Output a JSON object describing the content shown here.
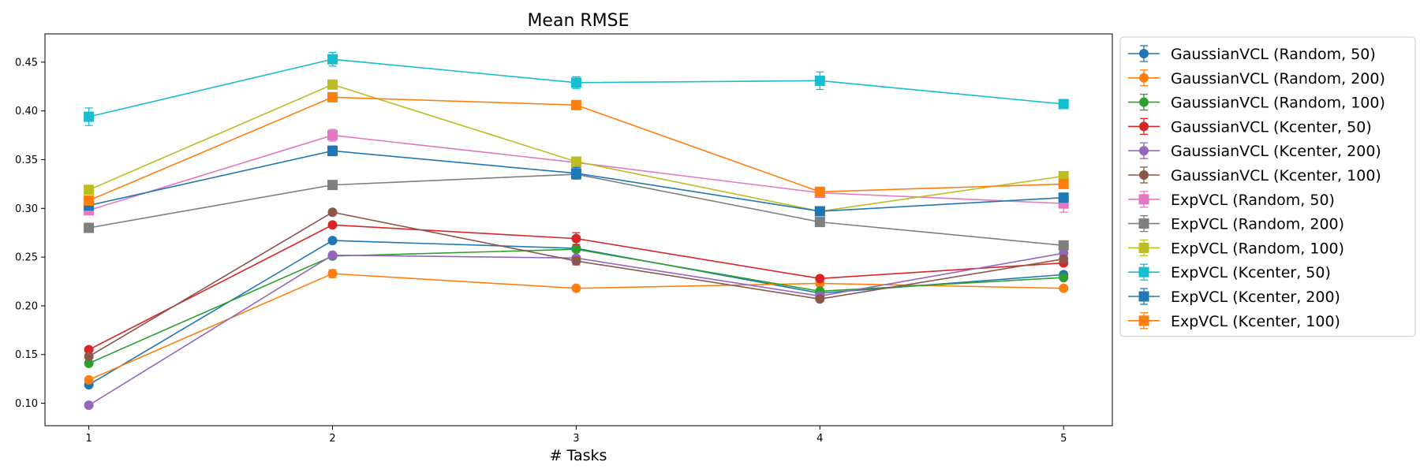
{
  "chart_data": {
    "type": "line",
    "title": "Mean RMSE",
    "xlabel": "# Tasks",
    "ylabel": "",
    "x": [
      1,
      2,
      3,
      4,
      5
    ],
    "xlim": [
      0.82,
      5.2
    ],
    "ylim": [
      0.077,
      0.479
    ],
    "yticks": [
      "0.10",
      "0.15",
      "0.20",
      "0.25",
      "0.30",
      "0.35",
      "0.40",
      "0.45"
    ],
    "xticks": [
      "1",
      "2",
      "3",
      "4",
      "5"
    ],
    "grid": false,
    "legend_position": "outside-right",
    "series": [
      {
        "name": "GaussianVCL (Random, 50)",
        "color": "#1f77b4",
        "marker": "circle",
        "values": [
          0.119,
          0.267,
          0.259,
          0.213,
          0.232
        ],
        "err": [
          0.002,
          0.002,
          0.002,
          0.002,
          0.002
        ]
      },
      {
        "name": "GaussianVCL (Random, 200)",
        "color": "#ff7f0e",
        "marker": "circle",
        "values": [
          0.124,
          0.233,
          0.218,
          0.223,
          0.218
        ],
        "err": [
          0.002,
          0.004,
          0.002,
          0.002,
          0.002
        ]
      },
      {
        "name": "GaussianVCL (Random, 100)",
        "color": "#2ca02c",
        "marker": "circle",
        "values": [
          0.141,
          0.251,
          0.258,
          0.215,
          0.229
        ],
        "err": [
          0.002,
          0.002,
          0.002,
          0.002,
          0.002
        ]
      },
      {
        "name": "GaussianVCL (Kcenter, 50)",
        "color": "#d62728",
        "marker": "circle",
        "values": [
          0.155,
          0.283,
          0.269,
          0.228,
          0.244
        ],
        "err": [
          0.002,
          0.002,
          0.006,
          0.002,
          0.002
        ]
      },
      {
        "name": "GaussianVCL (Kcenter, 200)",
        "color": "#9467bd",
        "marker": "circle",
        "values": [
          0.098,
          0.252,
          0.249,
          0.21,
          0.254
        ],
        "err": [
          0.002,
          0.002,
          0.002,
          0.002,
          0.002
        ]
      },
      {
        "name": "GaussianVCL (Kcenter, 100)",
        "color": "#8c564b",
        "marker": "circle",
        "values": [
          0.148,
          0.296,
          0.246,
          0.207,
          0.248
        ],
        "err": [
          0.002,
          0.002,
          0.004,
          0.002,
          0.002
        ]
      },
      {
        "name": "ExpVCL (Random, 50)",
        "color": "#e377c2",
        "marker": "square",
        "values": [
          0.298,
          0.375,
          0.347,
          0.316,
          0.305
        ],
        "err": [
          0.004,
          0.006,
          0.004,
          0.004,
          0.009
        ]
      },
      {
        "name": "ExpVCL (Random, 200)",
        "color": "#7f7f7f",
        "marker": "square",
        "values": [
          0.28,
          0.324,
          0.335,
          0.286,
          0.262
        ],
        "err": [
          0.002,
          0.002,
          0.004,
          0.002,
          0.002
        ]
      },
      {
        "name": "ExpVCL (Random, 100)",
        "color": "#bcbd22",
        "marker": "square",
        "values": [
          0.319,
          0.427,
          0.348,
          0.297,
          0.333
        ],
        "err": [
          0.004,
          0.002,
          0.002,
          0.002,
          0.002
        ]
      },
      {
        "name": "ExpVCL (Kcenter, 50)",
        "color": "#17becf",
        "marker": "square",
        "values": [
          0.394,
          0.453,
          0.429,
          0.431,
          0.407
        ],
        "err": [
          0.009,
          0.007,
          0.006,
          0.009,
          0.002
        ]
      },
      {
        "name": "ExpVCL (Kcenter, 200)",
        "color": "#1f77b4",
        "marker": "square",
        "values": [
          0.303,
          0.359,
          0.336,
          0.297,
          0.311
        ],
        "err": [
          0.004,
          0.005,
          0.006,
          0.002,
          0.002
        ]
      },
      {
        "name": "ExpVCL (Kcenter, 100)",
        "color": "#ff7f0e",
        "marker": "square",
        "values": [
          0.308,
          0.414,
          0.406,
          0.317,
          0.325
        ],
        "err": [
          0.004,
          0.003,
          0.003,
          0.003,
          0.003
        ]
      }
    ]
  }
}
